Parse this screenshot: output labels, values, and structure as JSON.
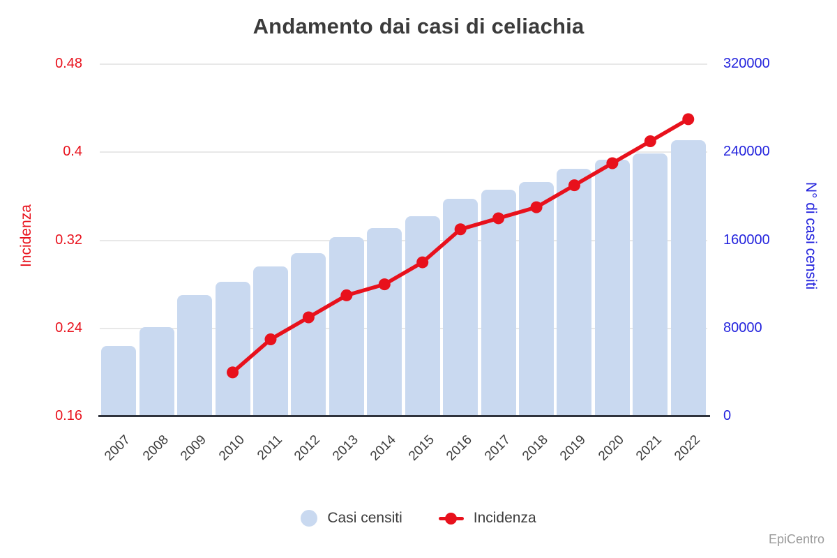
{
  "title": "Andamento dai casi di celiachia",
  "watermark": "EpiCentro",
  "legend": {
    "bar_label": "Casi censiti",
    "line_label": "Incidenza"
  },
  "colors": {
    "bar": "#c9d9f0",
    "line": "#e8111c",
    "left_axis_text": "#e8111c",
    "right_axis_text": "#2222dd",
    "grid": "#e8e8e8",
    "baseline": "#2f333c",
    "title_text": "#3b3b3b",
    "xtick_text": "#3c3c3c",
    "watermark_text": "#9b9b9b"
  },
  "chart_data": {
    "type": "combo(bar+line)",
    "title": "Andamento dai casi di celiachia",
    "categories": [
      "2007",
      "2008",
      "2009",
      "2010",
      "2011",
      "2012",
      "2013",
      "2014",
      "2015",
      "2016",
      "2017",
      "2018",
      "2019",
      "2020",
      "2021",
      "2022"
    ],
    "series": [
      {
        "name": "Casi censiti",
        "type": "bar",
        "axis": "right",
        "values": [
          64000,
          81000,
          110000,
          122000,
          136000,
          148000,
          163000,
          171000,
          182000,
          198000,
          206000,
          213000,
          225000,
          233000,
          239000,
          251000
        ]
      },
      {
        "name": "Incidenza",
        "type": "line",
        "axis": "left",
        "values": [
          null,
          null,
          null,
          0.2,
          0.23,
          0.25,
          0.27,
          0.28,
          0.3,
          0.33,
          0.34,
          0.35,
          0.37,
          0.39,
          0.41,
          0.43
        ]
      }
    ],
    "left_axis": {
      "label": "Incidenza",
      "min": 0.16,
      "max": 0.48,
      "ticks": [
        "0.48",
        "0.4",
        "0.32",
        "0.24",
        "0.16"
      ]
    },
    "right_axis": {
      "label": "N° di casi censiti",
      "min": 0,
      "max": 320000,
      "ticks": [
        "320000",
        "240000",
        "160000",
        "80000",
        "0"
      ]
    },
    "grid": true,
    "legend_position": "bottom"
  }
}
